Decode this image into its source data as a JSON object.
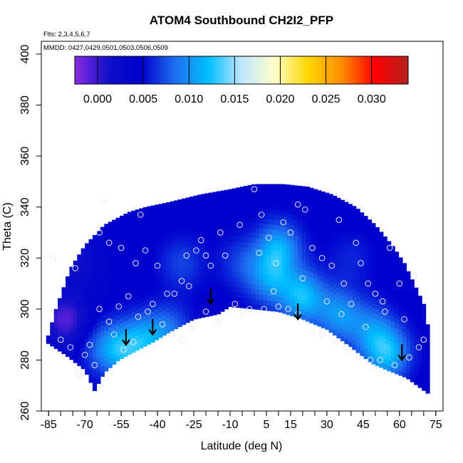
{
  "chart_data": {
    "type": "heatmap",
    "title": "ATOM4 Southbound CH2I2_PFP",
    "flights_note": "Flts: 2,3,4,5,6,7",
    "dates_note": "MMDD: 0427,0429,0501,0503,0506,0509",
    "xlabel": "Latitude (deg N)",
    "ylabel": "Theta (C)",
    "xlim": [
      -88,
      78
    ],
    "ylim": [
      260,
      405
    ],
    "x_ticks": [
      -85,
      -70,
      -55,
      -40,
      -25,
      -10,
      5,
      15,
      30,
      45,
      60,
      75
    ],
    "y_ticks": [
      260,
      280,
      300,
      320,
      340,
      360,
      380,
      400
    ],
    "colorbar": {
      "range": [
        -0.0025,
        0.034
      ],
      "ticks": [
        0.0,
        0.005,
        0.01,
        0.015,
        0.02,
        0.025,
        0.03
      ],
      "tick_labels": [
        "0.000",
        "0.005",
        "0.010",
        "0.015",
        "0.020",
        "0.025",
        "0.030"
      ],
      "colors": [
        "#8a2be2",
        "#1010c8",
        "#0000cd",
        "#1e6ef0",
        "#00bfff",
        "#bfe6ff",
        "#ffffc8",
        "#ffd700",
        "#ff8c00",
        "#ff0000",
        "#b22222"
      ]
    },
    "domain_top": [
      [
        -86,
        287
      ],
      [
        -82,
        300
      ],
      [
        -76,
        316
      ],
      [
        -70,
        325
      ],
      [
        -62,
        333
      ],
      [
        -52,
        338
      ],
      [
        -45,
        340
      ],
      [
        -35,
        342
      ],
      [
        -22,
        345
      ],
      [
        -10,
        347
      ],
      [
        0,
        349
      ],
      [
        12,
        349
      ],
      [
        22,
        348
      ],
      [
        32,
        345
      ],
      [
        42,
        340
      ],
      [
        50,
        333
      ],
      [
        57,
        325
      ],
      [
        62,
        318
      ],
      [
        67,
        308
      ],
      [
        71,
        300
      ],
      [
        72,
        290
      ],
      [
        73,
        266
      ]
    ],
    "domain_bottom": [
      [
        -86,
        287
      ],
      [
        -78,
        282
      ],
      [
        -70,
        276
      ],
      [
        -66,
        268
      ],
      [
        -62,
        275
      ],
      [
        -56,
        280
      ],
      [
        -50,
        283
      ],
      [
        -42,
        287
      ],
      [
        -35,
        291
      ],
      [
        -25,
        296
      ],
      [
        -15,
        298
      ],
      [
        -10,
        301
      ],
      [
        0,
        300
      ],
      [
        10,
        299
      ],
      [
        20,
        296
      ],
      [
        30,
        292
      ],
      [
        40,
        285
      ],
      [
        48,
        279
      ],
      [
        55,
        276
      ],
      [
        63,
        273
      ],
      [
        73,
        266
      ]
    ],
    "points": [
      [
        -62,
        342
      ],
      [
        -83,
        320
      ],
      [
        -74,
        316
      ],
      [
        -64,
        330
      ],
      [
        -60,
        326
      ],
      [
        -55,
        324
      ],
      [
        -49,
        318
      ],
      [
        -47,
        337
      ],
      [
        -45,
        323
      ],
      [
        -40,
        317
      ],
      [
        -33,
        306
      ],
      [
        -30,
        311
      ],
      [
        -27,
        309
      ],
      [
        -24,
        323
      ],
      [
        -22,
        327
      ],
      [
        -20,
        321
      ],
      [
        -12,
        321
      ],
      [
        -5,
        299
      ],
      [
        0,
        347
      ],
      [
        3,
        337
      ],
      [
        6,
        328
      ],
      [
        9,
        318
      ],
      [
        12,
        334
      ],
      [
        15,
        330
      ],
      [
        18,
        341
      ],
      [
        21,
        339
      ],
      [
        24,
        324
      ],
      [
        28,
        320
      ],
      [
        32,
        317
      ],
      [
        35,
        335
      ],
      [
        37,
        310
      ],
      [
        40,
        302
      ],
      [
        44,
        318
      ],
      [
        47,
        310
      ],
      [
        50,
        306
      ],
      [
        53,
        303
      ],
      [
        56,
        324
      ],
      [
        60,
        310
      ],
      [
        62,
        296
      ],
      [
        -80,
        288
      ],
      [
        -76,
        285
      ],
      [
        -70,
        282
      ],
      [
        -66,
        278
      ],
      [
        -60,
        295
      ],
      [
        -56,
        301
      ],
      [
        -52,
        305
      ],
      [
        -48,
        297
      ],
      [
        -44,
        299
      ],
      [
        -38,
        294
      ],
      [
        -34,
        290
      ],
      [
        -30,
        288
      ],
      [
        -26,
        292
      ],
      [
        -20,
        299
      ],
      [
        -15,
        295
      ],
      [
        -8,
        302
      ],
      [
        -2,
        300
      ],
      [
        4,
        300
      ],
      [
        10,
        301
      ],
      [
        14,
        300
      ],
      [
        18,
        298
      ],
      [
        24,
        291
      ],
      [
        28,
        290
      ],
      [
        34,
        287
      ],
      [
        38,
        285
      ],
      [
        43,
        281
      ],
      [
        48,
        280
      ],
      [
        52,
        280
      ],
      [
        58,
        278
      ],
      [
        64,
        281
      ],
      [
        68,
        285
      ],
      [
        70,
        288
      ],
      [
        -72,
        274
      ],
      [
        -68,
        286
      ],
      [
        -64,
        300
      ],
      [
        -58,
        290
      ],
      [
        -54,
        284
      ],
      [
        -50,
        287
      ],
      [
        -42,
        302
      ],
      [
        -36,
        306
      ],
      [
        -28,
        321
      ],
      [
        -18,
        317
      ],
      [
        -14,
        330
      ],
      [
        -6,
        333
      ],
      [
        2,
        322
      ],
      [
        8,
        307
      ],
      [
        20,
        312
      ],
      [
        30,
        303
      ],
      [
        36,
        298
      ],
      [
        42,
        326
      ],
      [
        46,
        293
      ],
      [
        54,
        299
      ],
      [
        66,
        313
      ]
    ],
    "arrows": [
      [
        -53,
        286
      ],
      [
        -42,
        290
      ],
      [
        -18,
        302
      ],
      [
        18,
        296
      ],
      [
        61,
        280
      ]
    ],
    "field_blobs": [
      {
        "lat": 10,
        "theta": 324,
        "value": 0.011
      },
      {
        "lat": 7,
        "theta": 312,
        "value": 0.01
      },
      {
        "lat": 20,
        "theta": 305,
        "value": 0.012
      },
      {
        "lat": 35,
        "theta": 298,
        "value": 0.01
      },
      {
        "lat": 55,
        "theta": 283,
        "value": 0.012
      },
      {
        "lat": 48,
        "theta": 292,
        "value": 0.009
      },
      {
        "lat": -55,
        "theta": 284,
        "value": 0.011
      },
      {
        "lat": -45,
        "theta": 288,
        "value": 0.01
      },
      {
        "lat": -35,
        "theta": 292,
        "value": 0.008
      },
      {
        "lat": -64,
        "theta": 285,
        "value": 0.007
      },
      {
        "lat": -30,
        "theta": 318,
        "value": 0.007
      },
      {
        "lat": -5,
        "theta": 318,
        "value": 0.007
      },
      {
        "lat": 40,
        "theta": 320,
        "value": 0.006
      },
      {
        "lat": -78,
        "theta": 296,
        "value": -0.001
      },
      {
        "lat": -72,
        "theta": 318,
        "value": 0.002
      }
    ]
  }
}
